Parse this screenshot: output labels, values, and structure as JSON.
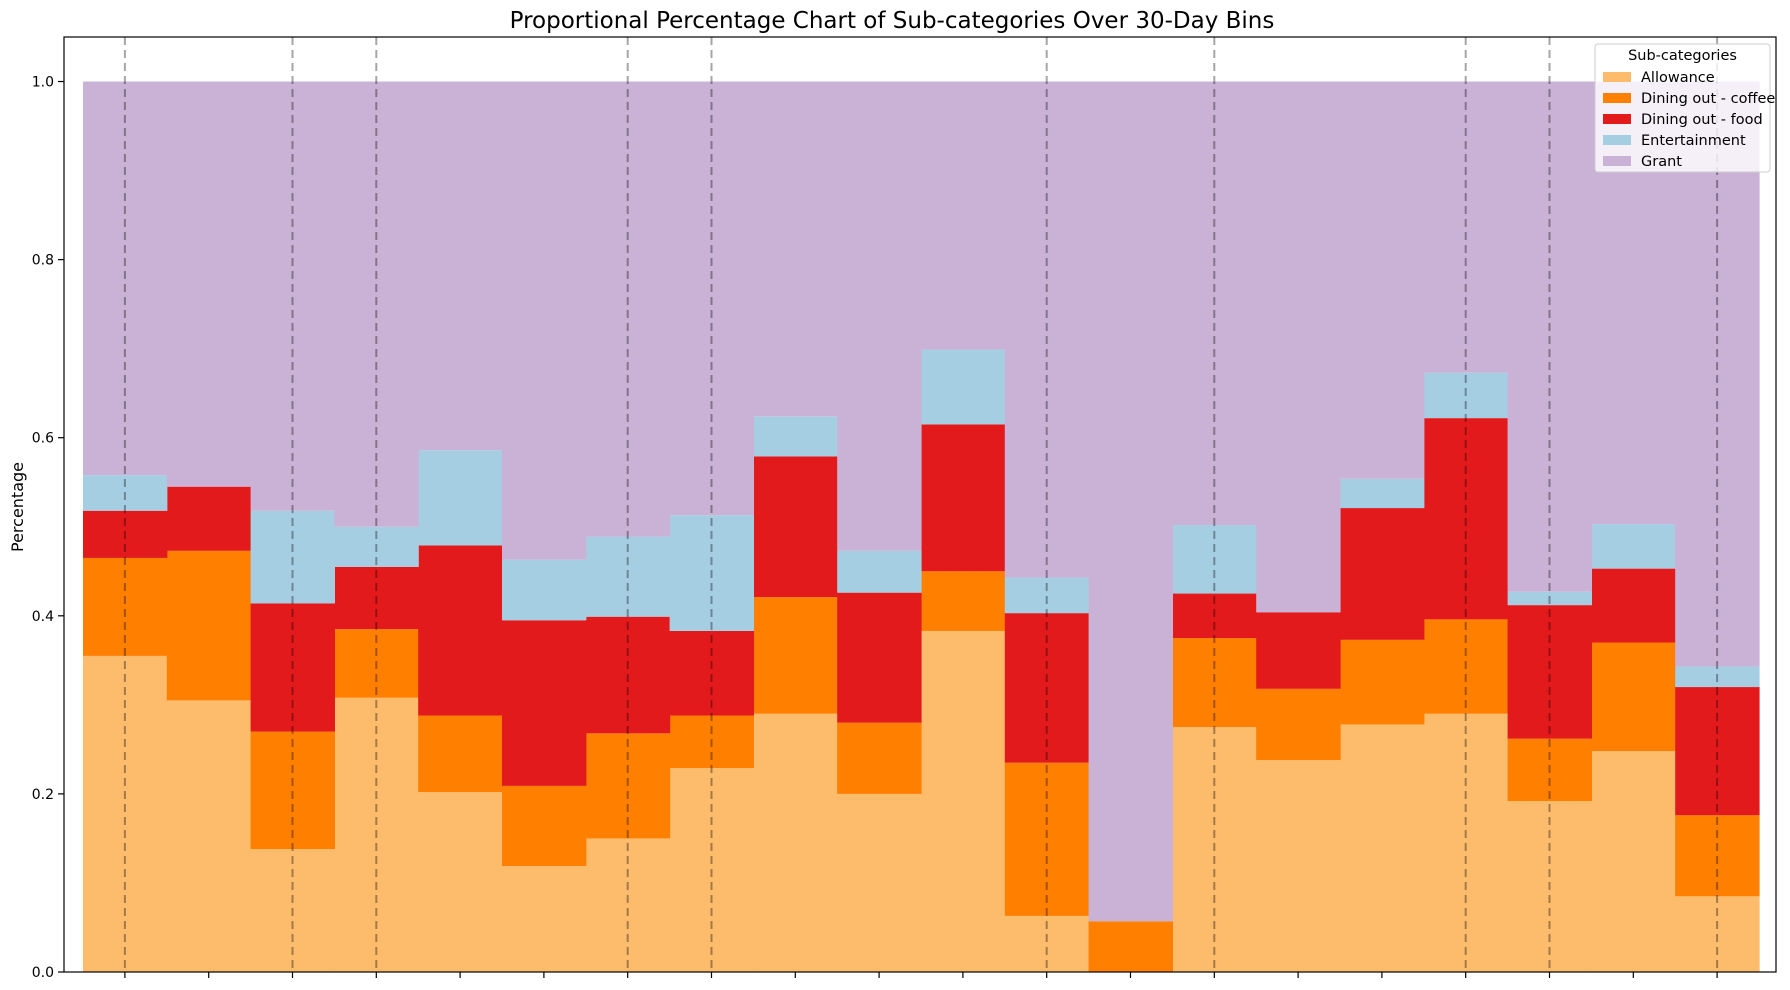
{
  "chart_data": {
    "type": "area",
    "title": "Proportional Percentage Chart of Sub-categories Over 30-Day Bins",
    "xlabel": "",
    "ylabel": "Percentage",
    "ylim": [
      0,
      1.05
    ],
    "yticks": [
      "0.0",
      "0.2",
      "0.4",
      "0.6",
      "0.8",
      "1.0"
    ],
    "grid": false,
    "legend_title": "Sub-categories",
    "legend_position": "top-right",
    "bin_count": 20,
    "vertical_dashed_lines_at_bin_index": [
      0.5,
      2.5,
      3.5,
      6.5,
      7.5,
      11.5,
      13.5,
      16.5,
      17.5,
      19.5
    ],
    "series": [
      {
        "name": "Allowance",
        "color": "#fdbb6c",
        "values": [
          0.355,
          0.305,
          0.138,
          0.308,
          0.202,
          0.119,
          0.15,
          0.229,
          0.29,
          0.2,
          0.383,
          0.063,
          0.0,
          0.275,
          0.238,
          0.278,
          0.29,
          0.192,
          0.248,
          0.085
        ]
      },
      {
        "name": "Dining out - coffee",
        "color": "#ff7f00",
        "values": [
          0.11,
          0.168,
          0.132,
          0.077,
          0.086,
          0.09,
          0.118,
          0.059,
          0.131,
          0.08,
          0.067,
          0.172,
          0.057,
          0.1,
          0.08,
          0.095,
          0.106,
          0.07,
          0.122,
          0.091
        ]
      },
      {
        "name": "Dining out - food",
        "color": "#e31a1c",
        "values": [
          0.053,
          0.072,
          0.144,
          0.07,
          0.191,
          0.186,
          0.131,
          0.095,
          0.158,
          0.146,
          0.165,
          0.168,
          0.0,
          0.05,
          0.086,
          0.148,
          0.226,
          0.15,
          0.083,
          0.144
        ]
      },
      {
        "name": "Entertainment",
        "color": "#a6cee3",
        "values": [
          0.04,
          0.0,
          0.104,
          0.045,
          0.107,
          0.068,
          0.09,
          0.13,
          0.045,
          0.047,
          0.084,
          0.04,
          0.0,
          0.077,
          0.0,
          0.033,
          0.051,
          0.015,
          0.05,
          0.023
        ]
      },
      {
        "name": "Grant",
        "color": "#cab2d6",
        "values": [
          0.442,
          0.455,
          0.482,
          0.5,
          0.414,
          0.537,
          0.511,
          0.487,
          0.376,
          0.527,
          0.301,
          0.557,
          0.943,
          0.498,
          0.596,
          0.446,
          0.327,
          0.573,
          0.497,
          0.657
        ]
      }
    ]
  }
}
